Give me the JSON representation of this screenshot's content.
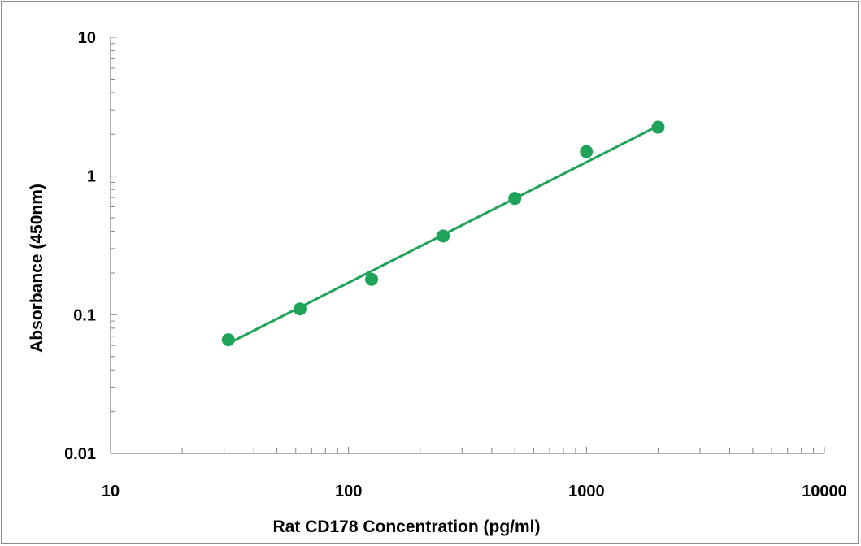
{
  "chart_data": {
    "type": "scatter",
    "title": "",
    "xlabel": "Rat CD178 Concentration (pg/ml)",
    "ylabel": "Absorbance (450nm)",
    "x_scale": "log",
    "y_scale": "log",
    "xlim": [
      10,
      10000
    ],
    "ylim": [
      0.01,
      10
    ],
    "x_ticks": [
      "10",
      "100",
      "1000",
      "10000"
    ],
    "y_ticks": [
      "0.01",
      "0.1",
      "1",
      "10"
    ],
    "grid": false,
    "legend": "none",
    "colors": {
      "series": "#1fa35a",
      "axis": "#808080",
      "frame": "#8c8c8c"
    },
    "series": [
      {
        "points": [
          {
            "x": 31.25,
            "y": 0.066
          },
          {
            "x": 62.5,
            "y": 0.11
          },
          {
            "x": 125,
            "y": 0.18
          },
          {
            "x": 250,
            "y": 0.37
          },
          {
            "x": 500,
            "y": 0.69
          },
          {
            "x": 1000,
            "y": 1.5
          },
          {
            "x": 2000,
            "y": 2.25
          }
        ],
        "fit_line": {
          "x": [
            31.25,
            2000
          ],
          "y": [
            0.062,
            2.3
          ]
        }
      }
    ]
  }
}
